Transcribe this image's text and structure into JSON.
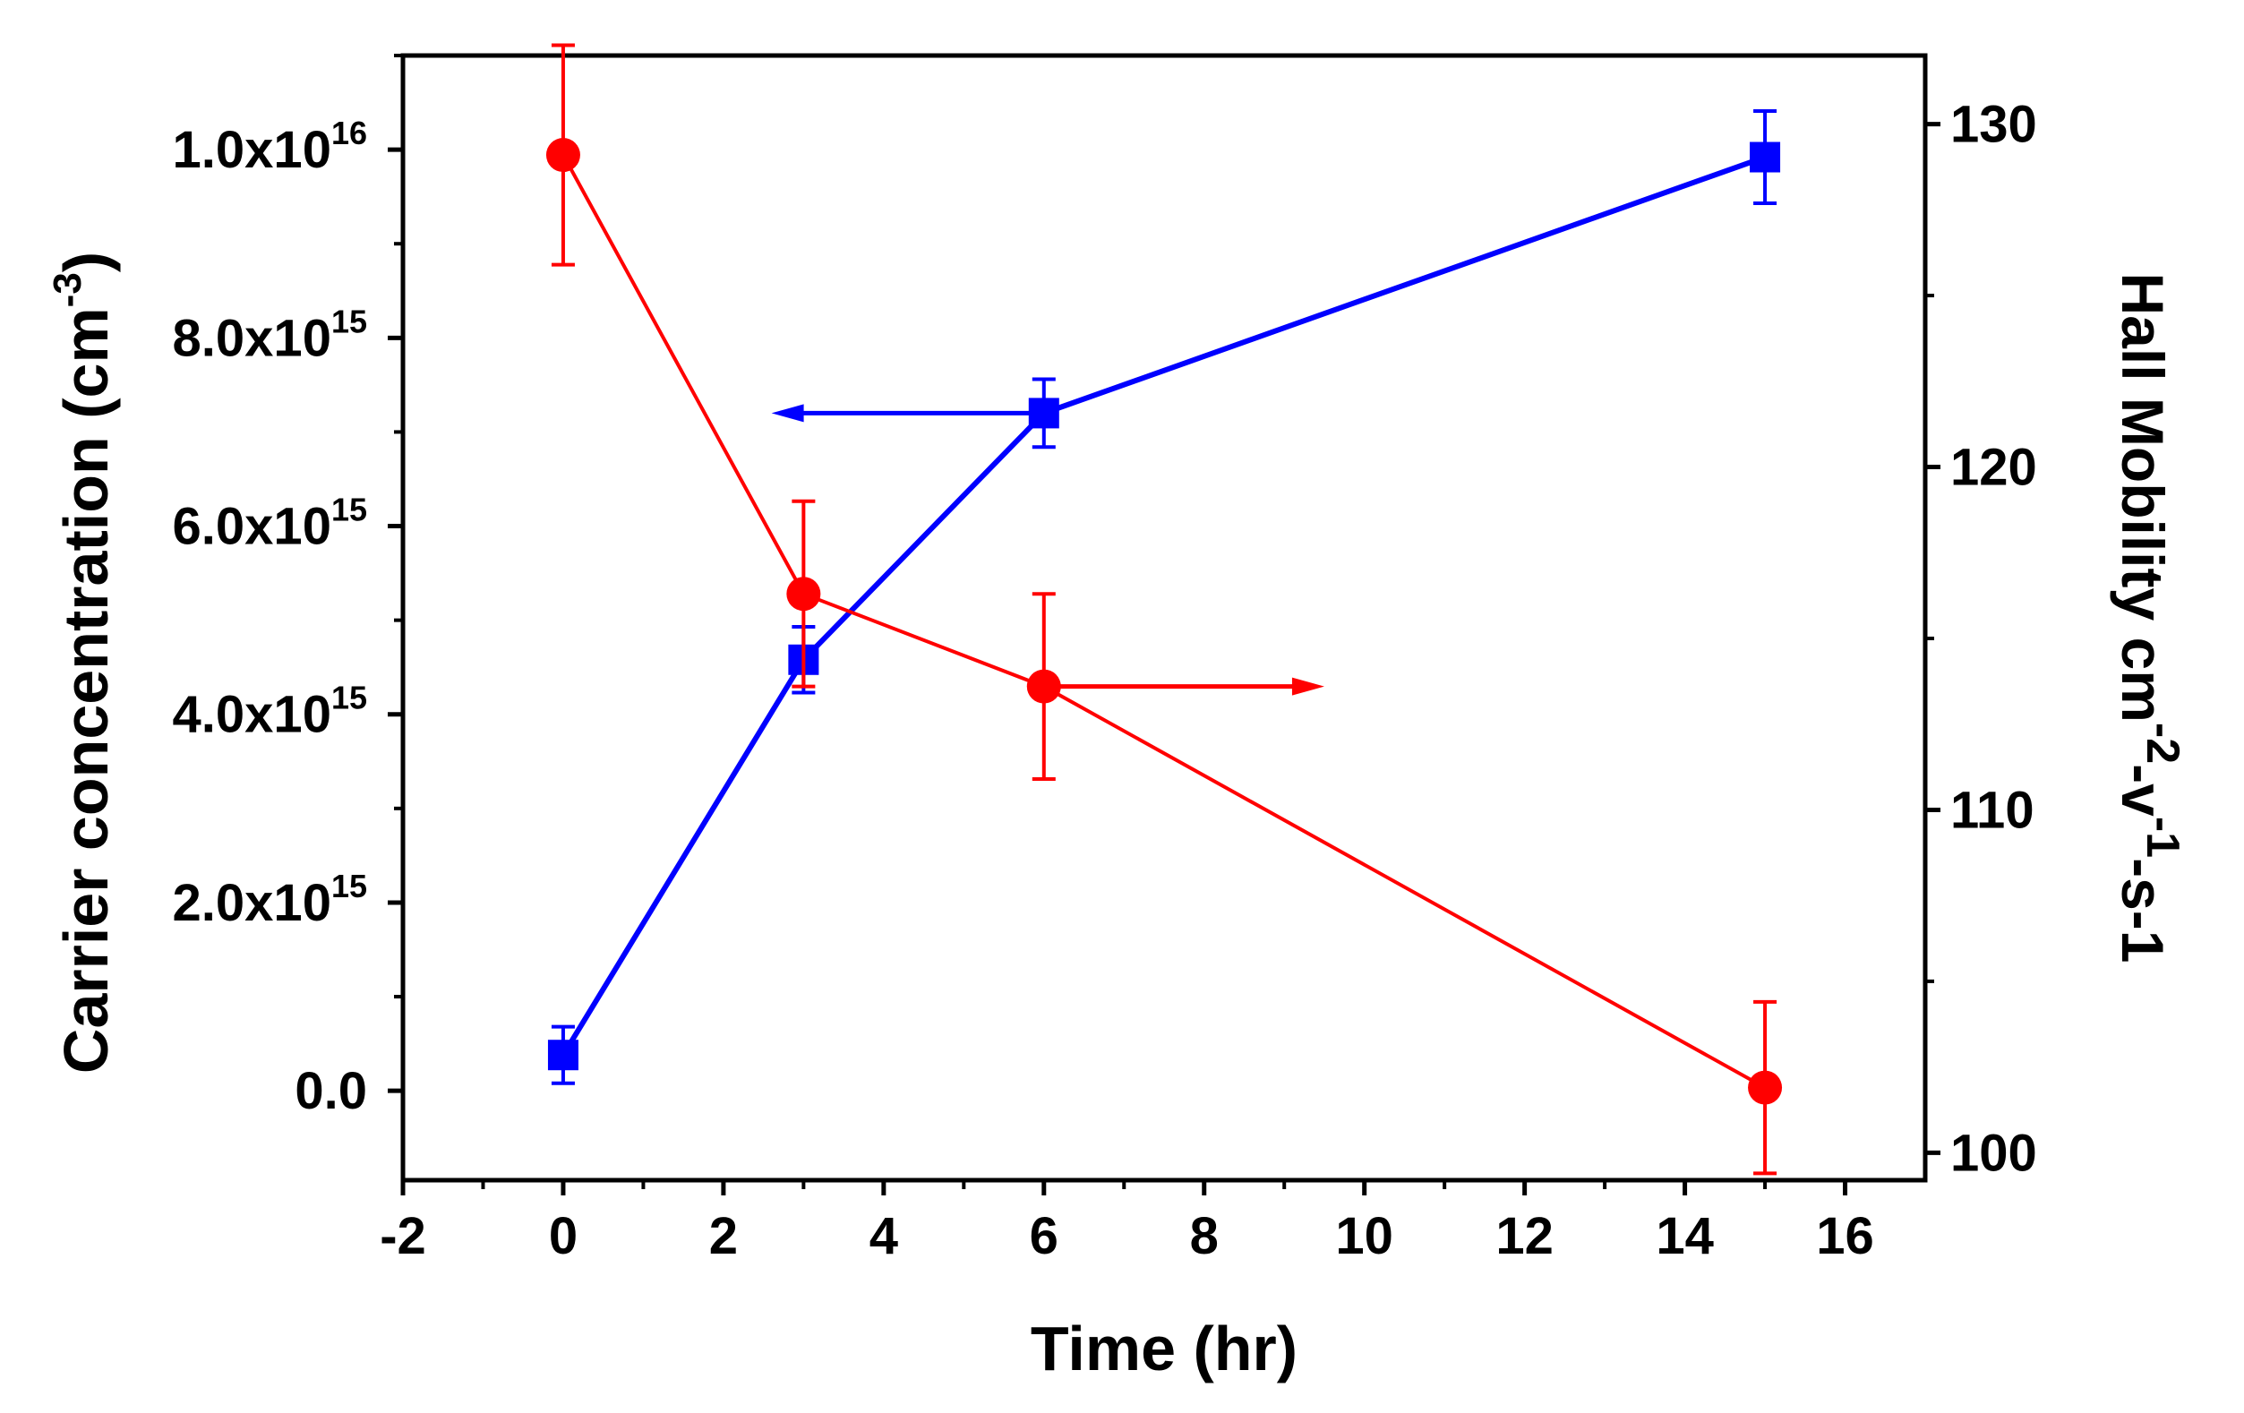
{
  "chart_data": {
    "type": "line",
    "title": "",
    "xlabel": "Time (hr)",
    "xlim": [
      -2,
      17
    ],
    "xticks": [
      -2,
      0,
      2,
      4,
      6,
      8,
      10,
      12,
      14,
      16
    ],
    "xtick_labels": [
      "-2",
      "0",
      "2",
      "4",
      "6",
      "8",
      "10",
      "12",
      "14",
      "16"
    ],
    "y_left": {
      "label_main": "Carrier concentration (cm",
      "label_sup": "-3",
      "label_end": ")",
      "lim": [
        -950000000000000.0,
        1.1e+16
      ],
      "ticks": [
        0,
        2000000000000000.0,
        4000000000000000.0,
        6000000000000000.0,
        8000000000000000.0,
        1e+16
      ],
      "tick_labels": [
        {
          "base": "0.0",
          "exp": ""
        },
        {
          "base": "2.0x10",
          "exp": "15"
        },
        {
          "base": "4.0x10",
          "exp": "15"
        },
        {
          "base": "6.0x10",
          "exp": "15"
        },
        {
          "base": "8.0x10",
          "exp": "15"
        },
        {
          "base": "1.0x10",
          "exp": "16"
        }
      ]
    },
    "y_right": {
      "label_parts": [
        {
          "text": "Hall Mobility cm",
          "sup": false
        },
        {
          "text": "-2",
          "sup": true
        },
        {
          "text": "-v",
          "sup": false
        },
        {
          "text": "-1",
          "sup": true
        },
        {
          "text": "-s",
          "sup": false
        },
        {
          "text": "-1",
          "sup": false
        }
      ],
      "lim": [
        99.2,
        132.0
      ],
      "ticks": [
        100,
        110,
        120,
        130
      ],
      "tick_labels": [
        "100",
        "110",
        "120",
        "130"
      ]
    },
    "series": [
      {
        "name": "Carrier concentration",
        "axis": "left",
        "color": "#0000FF",
        "marker": "square",
        "x": [
          0,
          3,
          6,
          15
        ],
        "y": [
          380000000000000.0,
          4580000000000000.0,
          7200000000000000.0,
          9920000000000000.0
        ],
        "err": [
          300000000000000.0,
          350000000000000.0,
          360000000000000.0,
          490000000000000.0
        ],
        "arrow": {
          "from_x": 6,
          "to_x": 2.6,
          "y": 7200000000000000.0
        }
      },
      {
        "name": "Hall Mobility",
        "axis": "right",
        "color": "#FF0000",
        "marker": "circle",
        "x": [
          0,
          3,
          6,
          15
        ],
        "y": [
          129.1,
          116.3,
          113.6,
          101.9
        ],
        "err": [
          3.2,
          2.7,
          2.7,
          2.5
        ],
        "arrow": {
          "from_x": 6,
          "to_x": 9.5,
          "y": 113.6
        }
      }
    ]
  }
}
